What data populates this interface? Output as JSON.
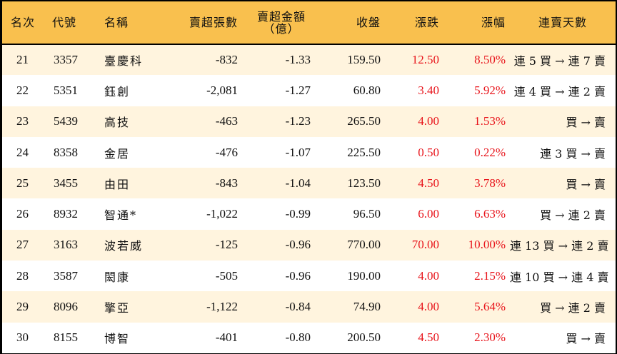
{
  "table": {
    "headers": {
      "rank": "名次",
      "code": "代號",
      "name": "名稱",
      "net_sell_shares": "賣超張數",
      "net_sell_amount_line1": "賣超金額",
      "net_sell_amount_line2": "（億）",
      "close": "收盤",
      "change": "漲跌",
      "change_pct": "漲幅",
      "streak": "連賣天數"
    },
    "rows": [
      {
        "rank": "21",
        "code": "3357",
        "name": "臺慶科",
        "net_sell_shares": "-832",
        "net_sell_amount": "-1.33",
        "close": "159.50",
        "change": "12.50",
        "change_pct": "8.50%",
        "streak": "連 5 買 → 連 7 賣"
      },
      {
        "rank": "22",
        "code": "5351",
        "name": "鈺創",
        "net_sell_shares": "-2,081",
        "net_sell_amount": "-1.27",
        "close": "60.80",
        "change": "3.40",
        "change_pct": "5.92%",
        "streak": "連 4 買 → 連 2 賣"
      },
      {
        "rank": "23",
        "code": "5439",
        "name": "高技",
        "net_sell_shares": "-463",
        "net_sell_amount": "-1.23",
        "close": "265.50",
        "change": "4.00",
        "change_pct": "1.53%",
        "streak": "買 → 賣"
      },
      {
        "rank": "24",
        "code": "8358",
        "name": "金居",
        "net_sell_shares": "-476",
        "net_sell_amount": "-1.07",
        "close": "225.50",
        "change": "0.50",
        "change_pct": "0.22%",
        "streak": "連 3 買 → 賣"
      },
      {
        "rank": "25",
        "code": "3455",
        "name": "由田",
        "net_sell_shares": "-843",
        "net_sell_amount": "-1.04",
        "close": "123.50",
        "change": "4.50",
        "change_pct": "3.78%",
        "streak": "買 → 賣"
      },
      {
        "rank": "26",
        "code": "8932",
        "name": "智通*",
        "net_sell_shares": "-1,022",
        "net_sell_amount": "-0.99",
        "close": "96.50",
        "change": "6.00",
        "change_pct": "6.63%",
        "streak": "買 → 連 2 賣"
      },
      {
        "rank": "27",
        "code": "3163",
        "name": "波若威",
        "net_sell_shares": "-125",
        "net_sell_amount": "-0.96",
        "close": "770.00",
        "change": "70.00",
        "change_pct": "10.00%",
        "streak": "連 13 買 → 連 2 賣"
      },
      {
        "rank": "28",
        "code": "3587",
        "name": "閎康",
        "net_sell_shares": "-505",
        "net_sell_amount": "-0.96",
        "close": "190.00",
        "change": "4.00",
        "change_pct": "2.15%",
        "streak": "連 10 買 → 連 4 賣"
      },
      {
        "rank": "29",
        "code": "8096",
        "name": "擎亞",
        "net_sell_shares": "-1,122",
        "net_sell_amount": "-0.84",
        "close": "74.90",
        "change": "4.00",
        "change_pct": "5.64%",
        "streak": "買 → 連 2 賣"
      },
      {
        "rank": "30",
        "code": "8155",
        "name": "博智",
        "net_sell_shares": "-401",
        "net_sell_amount": "-0.80",
        "close": "200.50",
        "change": "4.50",
        "change_pct": "2.30%",
        "streak": "買 → 賣"
      }
    ]
  },
  "colors": {
    "header_bg": "#F9C04E",
    "odd_row_bg": "#FFF4DE",
    "even_row_bg": "#FFFFFF",
    "up_red": "#E8141B",
    "border": "#000000"
  }
}
